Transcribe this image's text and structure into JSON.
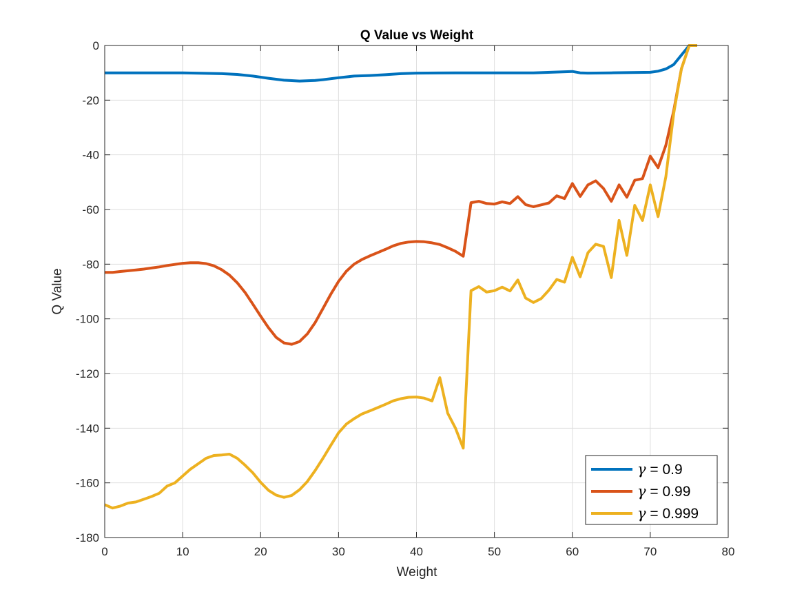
{
  "chart_data": {
    "type": "line",
    "title": "Q Value vs Weight",
    "xlabel": "Weight",
    "ylabel": "Q Value",
    "xlim": [
      0,
      80
    ],
    "ylim": [
      -180,
      0
    ],
    "xticks": [
      0,
      10,
      20,
      30,
      40,
      50,
      60,
      70,
      80
    ],
    "yticks": [
      0,
      -20,
      -40,
      -60,
      -80,
      -100,
      -120,
      -140,
      -160,
      -180
    ],
    "grid": true,
    "legend_position": "bottom-right",
    "series": [
      {
        "name": "γ = 0.9",
        "symbol": "γ",
        "value_text": " = 0.9",
        "color": "#0072BD",
        "x": [
          0,
          5,
          10,
          15,
          17,
          19,
          21,
          23,
          25,
          27,
          28,
          30,
          32,
          34,
          36,
          38,
          40,
          45,
          50,
          55,
          60,
          61,
          62,
          65,
          70,
          71,
          72,
          73,
          74,
          75,
          76
        ],
        "y": [
          -10,
          -10,
          -10,
          -10.3,
          -10.6,
          -11.2,
          -12,
          -12.7,
          -13,
          -12.8,
          -12.5,
          -11.8,
          -11.2,
          -11,
          -10.7,
          -10.3,
          -10.1,
          -10,
          -10,
          -10,
          -9.5,
          -10,
          -10.1,
          -10,
          -9.8,
          -9.4,
          -8.6,
          -7,
          -3.5,
          0,
          0
        ]
      },
      {
        "name": "γ = 0.99",
        "symbol": "γ",
        "value_text": " = 0.99",
        "color": "#D95319",
        "x": [
          0,
          1,
          2,
          3,
          4,
          5,
          6,
          7,
          8,
          9,
          10,
          11,
          12,
          13,
          14,
          15,
          16,
          17,
          18,
          19,
          20,
          21,
          22,
          23,
          24,
          25,
          26,
          27,
          28,
          29,
          30,
          31,
          32,
          33,
          34,
          35,
          36,
          37,
          38,
          39,
          40,
          41,
          42,
          43,
          44,
          45,
          46,
          47,
          48,
          49,
          50,
          51,
          52,
          53,
          54,
          55,
          56,
          57,
          58,
          59,
          60,
          61,
          62,
          63,
          64,
          65,
          66,
          67,
          68,
          69,
          70,
          71,
          72,
          73,
          74,
          75,
          76
        ],
        "y": [
          -83,
          -83,
          -82.7,
          -82.4,
          -82.1,
          -81.8,
          -81.4,
          -81,
          -80.5,
          -80.1,
          -79.7,
          -79.5,
          -79.5,
          -79.8,
          -80.6,
          -82,
          -84,
          -86.8,
          -90.3,
          -94.6,
          -99,
          -103.2,
          -106.8,
          -108.8,
          -109.3,
          -108.3,
          -105.5,
          -101.4,
          -96.2,
          -91,
          -86.3,
          -82.6,
          -80,
          -78.3,
          -77,
          -75.8,
          -74.6,
          -73.3,
          -72.4,
          -71.9,
          -71.7,
          -71.8,
          -72.2,
          -72.8,
          -74,
          -75.3,
          -77.1,
          -57.5,
          -57,
          -57.8,
          -58,
          -57.2,
          -57.8,
          -55.3,
          -58.2,
          -59,
          -58.3,
          -57.6,
          -55,
          -56,
          -50.5,
          -55.2,
          -51,
          -49.5,
          -52.3,
          -57,
          -51,
          -55.5,
          -49.3,
          -48.7,
          -40.5,
          -44.7,
          -36.5,
          -24,
          -8.5,
          0,
          0
        ]
      },
      {
        "name": "γ = 0.999",
        "symbol": "γ",
        "value_text": " = 0.999",
        "color": "#EDB120",
        "x": [
          0,
          1,
          2,
          3,
          4,
          5,
          6,
          7,
          8,
          9,
          10,
          11,
          12,
          13,
          14,
          15,
          16,
          17,
          18,
          19,
          20,
          21,
          22,
          23,
          24,
          25,
          26,
          27,
          28,
          29,
          30,
          31,
          32,
          33,
          34,
          35,
          36,
          37,
          38,
          39,
          40,
          41,
          42,
          43,
          44,
          45,
          46,
          47,
          48,
          49,
          50,
          51,
          52,
          53,
          54,
          55,
          56,
          57,
          58,
          59,
          60,
          61,
          62,
          63,
          64,
          65,
          66,
          67,
          68,
          69,
          70,
          71,
          72,
          73,
          74,
          75,
          76
        ],
        "y": [
          -168,
          -169.2,
          -168.5,
          -167.4,
          -167,
          -166,
          -165,
          -163.8,
          -161.2,
          -160,
          -157.5,
          -155,
          -153,
          -151,
          -150,
          -149.8,
          -149.5,
          -151,
          -153.5,
          -156.3,
          -159.8,
          -162.7,
          -164.5,
          -165.3,
          -164.6,
          -162.5,
          -159.5,
          -155.5,
          -151,
          -146.3,
          -141.7,
          -138.5,
          -136.5,
          -134.8,
          -133.7,
          -132.5,
          -131.3,
          -130,
          -129.2,
          -128.7,
          -128.6,
          -129,
          -130,
          -121.5,
          -134.5,
          -140,
          -147.3,
          -89.7,
          -88.2,
          -90.2,
          -89.7,
          -88.4,
          -89.8,
          -85.8,
          -92.4,
          -94,
          -92.6,
          -89.5,
          -85.6,
          -86.6,
          -77.5,
          -84.6,
          -75.8,
          -72.7,
          -73.5,
          -84.9,
          -64,
          -76.8,
          -58.5,
          -64,
          -51,
          -62.6,
          -48,
          -25,
          -8.5,
          0,
          0
        ]
      }
    ]
  }
}
